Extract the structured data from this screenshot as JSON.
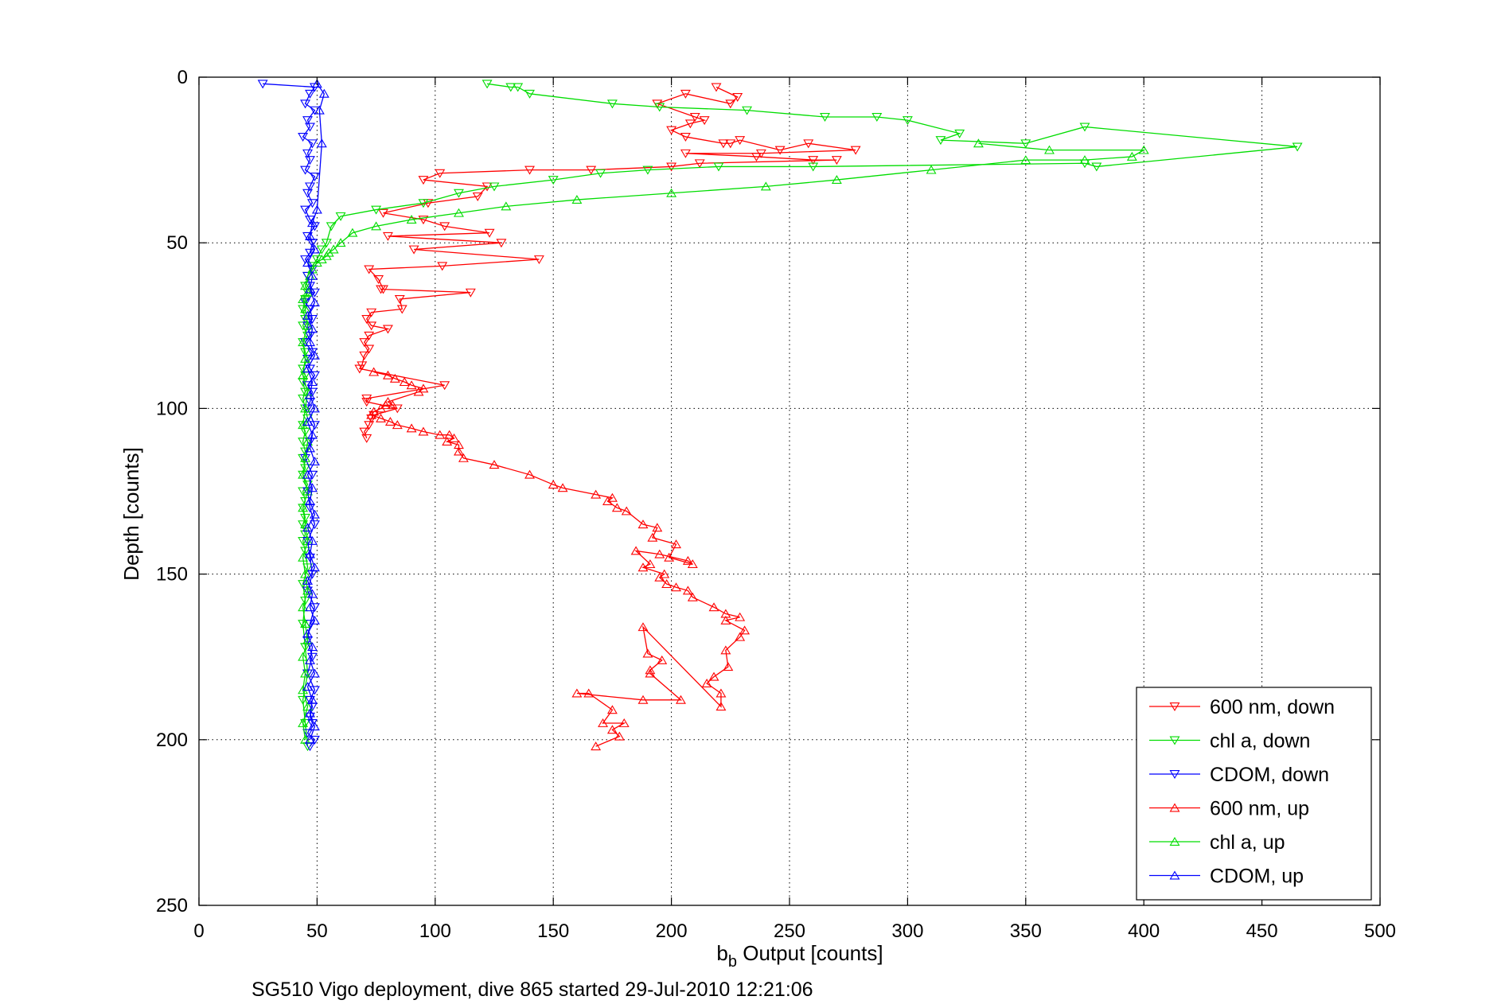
{
  "chart_data": {
    "type": "line",
    "xlabel_main": "b",
    "xlabel_sub": "b",
    "xlabel_rest": " Output [counts]",
    "ylabel": "Depth [counts]",
    "caption": "SG510 Vigo deployment, dive 865 started 29-Jul-2010 12:21:06",
    "xlim": [
      0,
      500
    ],
    "ylim": [
      0,
      250
    ],
    "y_reversed": true,
    "xticks": [
      "0",
      "50",
      "100",
      "150",
      "200",
      "250",
      "300",
      "350",
      "400",
      "450",
      "500"
    ],
    "yticks": [
      "0",
      "50",
      "100",
      "150",
      "200",
      "250"
    ],
    "grid": true,
    "legend_position": "bottom-right",
    "series": [
      {
        "name": "600 nm, down",
        "color": "#ff0000",
        "marker": "triangle-down",
        "x": [
          219,
          228,
          225,
          206,
          194,
          210,
          214,
          208,
          200,
          206,
          222,
          225,
          229,
          246,
          258,
          278,
          238,
          206,
          236,
          260,
          270,
          212,
          200,
          166,
          140,
          102,
          95,
          122,
          118,
          97,
          78,
          95,
          104,
          123,
          80,
          128,
          91,
          144,
          103,
          72,
          76,
          78,
          77,
          115,
          85,
          86,
          73,
          71,
          73,
          80,
          72,
          70,
          72,
          70,
          69,
          68,
          104,
          71,
          71,
          84,
          74,
          73,
          72,
          70,
          71
        ],
        "y": [
          3,
          6,
          8,
          5,
          8,
          12,
          13,
          14,
          16,
          18,
          20,
          20,
          19,
          22,
          20,
          22,
          23,
          23,
          24,
          25,
          25,
          26,
          27,
          28,
          28,
          29,
          31,
          33,
          36,
          38,
          41,
          43,
          45,
          47,
          48,
          50,
          52,
          55,
          57,
          58,
          61,
          64,
          64,
          65,
          67,
          70,
          71,
          73,
          75,
          76,
          78,
          80,
          82,
          84,
          87,
          88,
          93,
          97,
          98,
          100,
          102,
          103,
          105,
          107,
          109
        ]
      },
      {
        "name": "chl a, down",
        "color": "#00dd00",
        "marker": "triangle-down",
        "x": [
          122,
          132,
          135,
          140,
          175,
          195,
          232,
          265,
          287,
          300,
          322,
          314,
          350,
          375,
          465,
          380,
          375,
          260,
          220,
          190,
          170,
          150,
          125,
          110,
          95,
          75,
          60,
          56,
          54,
          52,
          50,
          48,
          46,
          45,
          46,
          45,
          44,
          45,
          44,
          46,
          44,
          45,
          46,
          44,
          45,
          44,
          45,
          44,
          45,
          46,
          44,
          45,
          44,
          45,
          44,
          45,
          44,
          46,
          44,
          45,
          44,
          45,
          44,
          45,
          44,
          45,
          46,
          44,
          45,
          44,
          45,
          46,
          44,
          45,
          46
        ],
        "y": [
          2,
          3,
          3,
          5,
          8,
          9,
          10,
          12,
          12,
          13,
          17,
          19,
          20,
          15,
          21,
          27,
          26,
          27,
          27,
          28,
          29,
          31,
          33,
          35,
          38,
          40,
          42,
          45,
          50,
          52,
          55,
          57,
          60,
          63,
          65,
          67,
          70,
          73,
          75,
          78,
          80,
          83,
          85,
          88,
          90,
          92,
          95,
          97,
          100,
          103,
          105,
          107,
          110,
          113,
          115,
          118,
          120,
          123,
          125,
          128,
          130,
          133,
          135,
          138,
          140,
          143,
          148,
          153,
          158,
          165,
          172,
          180,
          188,
          195,
          202
        ]
      },
      {
        "name": "CDOM, down",
        "color": "#0000ff",
        "marker": "triangle-down",
        "x": [
          27,
          49,
          47,
          45,
          49,
          46,
          47,
          44,
          48,
          46,
          47,
          45,
          49,
          47,
          46,
          48,
          45,
          47,
          49,
          46,
          48,
          47,
          45,
          48,
          46,
          47,
          49,
          45,
          47,
          48,
          46,
          47,
          45,
          48,
          46,
          47,
          49,
          46,
          48,
          47,
          46,
          49,
          47,
          45,
          48,
          46,
          47,
          49,
          46,
          47,
          48,
          46,
          49,
          47,
          46,
          48,
          46,
          49,
          47,
          48,
          47,
          48,
          46,
          49,
          47
        ],
        "y": [
          2,
          3,
          5,
          8,
          10,
          13,
          15,
          18,
          20,
          23,
          25,
          28,
          30,
          33,
          35,
          38,
          40,
          43,
          45,
          48,
          50,
          53,
          55,
          58,
          60,
          63,
          65,
          68,
          70,
          73,
          75,
          78,
          80,
          83,
          85,
          88,
          90,
          93,
          95,
          98,
          100,
          105,
          110,
          115,
          120,
          125,
          130,
          135,
          140,
          145,
          150,
          155,
          160,
          165,
          170,
          175,
          180,
          185,
          188,
          190,
          193,
          195,
          198,
          200,
          202
        ]
      },
      {
        "name": "600 nm, up",
        "color": "#ff0000",
        "marker": "triangle-up",
        "x": [
          168,
          178,
          175,
          180,
          171,
          175,
          165,
          160,
          188,
          204,
          191,
          191,
          196,
          190,
          188,
          221,
          221,
          215,
          218,
          224,
          223,
          229,
          231,
          223,
          229,
          223,
          218,
          209,
          207,
          202,
          198,
          195,
          197,
          188,
          191,
          185,
          195,
          207,
          209,
          199,
          202,
          192,
          194,
          188,
          181,
          177,
          173,
          175,
          168,
          154,
          150,
          140,
          125,
          112,
          110,
          110,
          105,
          108,
          106,
          102,
          95,
          90,
          84,
          81,
          77,
          73,
          74,
          77,
          79,
          82,
          80,
          93,
          95,
          90,
          87,
          83,
          80,
          74
        ],
        "y": [
          202,
          199,
          197,
          195,
          195,
          191,
          186,
          186,
          188,
          188,
          180,
          179,
          176,
          174,
          166,
          190,
          186,
          183,
          181,
          178,
          173,
          169,
          167,
          164,
          163,
          162,
          160,
          157,
          155,
          154,
          153,
          151,
          150,
          148,
          147,
          143,
          144,
          146,
          147,
          145,
          141,
          139,
          136,
          135,
          131,
          130,
          128,
          127,
          126,
          124,
          123,
          120,
          117,
          115,
          113,
          111,
          110,
          109,
          108,
          108,
          107,
          106,
          105,
          104,
          103,
          102,
          101,
          100,
          99,
          99,
          98,
          95,
          94,
          93,
          92,
          91,
          90,
          89
        ],
        "y_note": ""
      },
      {
        "name": "chl a, up",
        "color": "#00dd00",
        "marker": "triangle-up",
        "x": [
          45,
          44,
          46,
          44,
          45,
          44,
          46,
          45,
          44,
          46,
          45,
          44,
          46,
          45,
          44,
          46,
          44,
          45,
          46,
          44,
          45,
          46,
          44,
          45,
          44,
          46,
          45,
          44,
          46,
          45,
          47,
          48,
          50,
          52,
          54,
          55,
          57,
          60,
          65,
          75,
          90,
          110,
          130,
          160,
          200,
          240,
          270,
          310,
          350,
          375,
          395,
          400,
          360,
          330
        ],
        "y": [
          200,
          195,
          190,
          185,
          180,
          175,
          170,
          165,
          160,
          155,
          150,
          145,
          140,
          135,
          130,
          125,
          120,
          115,
          110,
          105,
          100,
          95,
          90,
          85,
          80,
          75,
          70,
          67,
          65,
          63,
          60,
          58,
          56,
          55,
          54,
          53,
          52,
          50,
          47,
          45,
          43,
          41,
          39,
          37,
          35,
          33,
          31,
          28,
          25,
          25,
          24,
          22,
          22,
          20
        ]
      },
      {
        "name": "CDOM, up",
        "color": "#0000ff",
        "marker": "triangle-up",
        "x": [
          47,
          49,
          47,
          48,
          46,
          49,
          47,
          48,
          46,
          49,
          47,
          48,
          46,
          49,
          47,
          48,
          46,
          49,
          47,
          48,
          46,
          49,
          47,
          48,
          46,
          49,
          47,
          48,
          46,
          49,
          47,
          48,
          46,
          49,
          47,
          48,
          46,
          49,
          47,
          48,
          50,
          52,
          51,
          53,
          50
        ],
        "y": [
          200,
          196,
          192,
          188,
          184,
          180,
          176,
          172,
          168,
          164,
          160,
          156,
          152,
          148,
          144,
          140,
          136,
          132,
          128,
          124,
          120,
          116,
          112,
          108,
          104,
          100,
          96,
          92,
          88,
          84,
          80,
          76,
          72,
          68,
          64,
          60,
          56,
          52,
          48,
          44,
          40,
          20,
          10,
          5,
          2
        ]
      }
    ]
  }
}
